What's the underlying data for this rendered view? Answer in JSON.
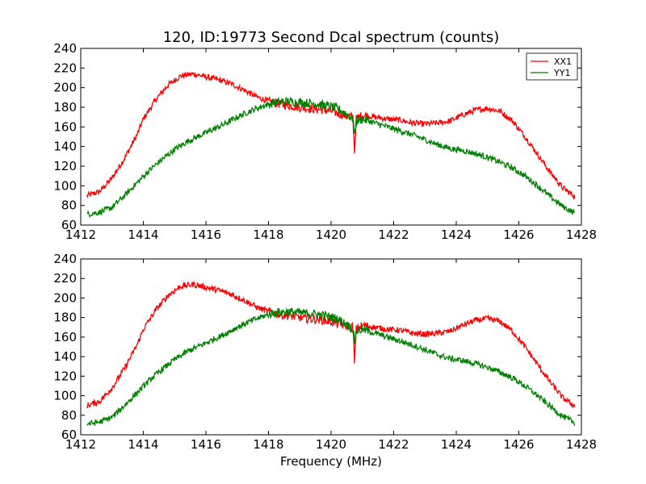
{
  "chart_data": {
    "type": "line",
    "title": "120, ID:19773 Second Dcal spectrum (counts)",
    "xlabel": "Frequency (MHz)",
    "ylabel": "",
    "grid": false,
    "legend_placement": "top-right",
    "panels": [
      {
        "name": "top",
        "xlim": [
          1412,
          1428
        ],
        "ylim": [
          60,
          240
        ],
        "xticks": [
          1412,
          1414,
          1416,
          1418,
          1420,
          1422,
          1424,
          1426,
          1428
        ],
        "yticks": [
          60,
          80,
          100,
          120,
          140,
          160,
          180,
          200,
          220,
          240
        ],
        "show_legend": true,
        "show_xlabel": false,
        "show_title": true,
        "series": [
          {
            "name": "XX1",
            "color": "#ff0000",
            "x": [
              1412.2,
              1412.6,
              1413.0,
              1413.4,
              1413.8,
              1414.0,
              1414.4,
              1414.8,
              1415.2,
              1415.6,
              1416.0,
              1416.4,
              1416.8,
              1417.2,
              1417.6,
              1418.0,
              1418.4,
              1418.8,
              1419.2,
              1419.6,
              1420.0,
              1420.4,
              1420.7,
              1420.75,
              1420.8,
              1421.0,
              1421.4,
              1421.8,
              1422.2,
              1422.6,
              1423.0,
              1423.4,
              1423.8,
              1424.2,
              1424.6,
              1425.0,
              1425.4,
              1425.8,
              1426.2,
              1426.6,
              1427.0,
              1427.4,
              1427.8
            ],
            "y": [
              90,
              94,
              108,
              128,
              152,
              168,
              188,
              203,
              212,
              214,
              211,
              208,
              204,
              198,
              191,
              186,
              183,
              181,
              179,
              178,
              176,
              172,
              170,
              133,
              168,
              172,
              170,
              168,
              167,
              164,
              163,
              164,
              166,
              172,
              177,
              179,
              176,
              166,
              150,
              132,
              114,
              98,
              89
            ]
          },
          {
            "name": "YY1",
            "color": "#008000",
            "x": [
              1412.2,
              1412.6,
              1413.0,
              1413.4,
              1413.8,
              1414.2,
              1414.6,
              1415.0,
              1415.4,
              1415.8,
              1416.2,
              1416.6,
              1417.0,
              1417.4,
              1417.8,
              1418.2,
              1418.6,
              1419.0,
              1419.4,
              1419.8,
              1420.2,
              1420.5,
              1420.7,
              1420.75,
              1420.8,
              1421.0,
              1421.4,
              1421.8,
              1422.2,
              1422.6,
              1423.0,
              1423.4,
              1423.8,
              1424.2,
              1424.6,
              1425.0,
              1425.4,
              1425.8,
              1426.2,
              1426.6,
              1427.0,
              1427.4,
              1427.8
            ],
            "y": [
              71,
              73,
              78,
              90,
              103,
              116,
              127,
              137,
              145,
              151,
              157,
              163,
              170,
              176,
              181,
              185,
              186,
              185,
              184,
              182,
              179,
              173,
              168,
              153,
              166,
              168,
              164,
              160,
              156,
              152,
              147,
              142,
              138,
              136,
              133,
              129,
              124,
              118,
              110,
              100,
              89,
              79,
              72
            ]
          }
        ]
      },
      {
        "name": "bottom",
        "xlim": [
          1412,
          1428
        ],
        "ylim": [
          60,
          240
        ],
        "xticks": [
          1412,
          1414,
          1416,
          1418,
          1420,
          1422,
          1424,
          1426,
          1428
        ],
        "yticks": [
          60,
          80,
          100,
          120,
          140,
          160,
          180,
          200,
          220,
          240
        ],
        "show_legend": false,
        "show_xlabel": true,
        "show_title": false,
        "series": [
          {
            "name": "XX1",
            "color": "#ff0000",
            "x": [
              1412.2,
              1412.6,
              1413.0,
              1413.4,
              1413.8,
              1414.0,
              1414.4,
              1414.8,
              1415.2,
              1415.6,
              1416.0,
              1416.4,
              1416.8,
              1417.2,
              1417.6,
              1418.0,
              1418.4,
              1418.8,
              1419.2,
              1419.6,
              1420.0,
              1420.4,
              1420.7,
              1420.75,
              1420.8,
              1421.0,
              1421.4,
              1421.8,
              1422.2,
              1422.6,
              1423.0,
              1423.4,
              1423.8,
              1424.2,
              1424.6,
              1425.0,
              1425.4,
              1425.8,
              1426.2,
              1426.6,
              1427.0,
              1427.4,
              1427.8
            ],
            "y": [
              90,
              94,
              108,
              128,
              152,
              168,
              188,
              203,
              212,
              214,
              211,
              208,
              204,
              198,
              191,
              186,
              183,
              181,
              179,
              178,
              176,
              172,
              170,
              133,
              168,
              172,
              170,
              168,
              167,
              164,
              163,
              164,
              166,
              172,
              177,
              179,
              176,
              166,
              150,
              132,
              114,
              98,
              89
            ]
          },
          {
            "name": "YY1",
            "color": "#008000",
            "x": [
              1412.2,
              1412.6,
              1413.0,
              1413.4,
              1413.8,
              1414.2,
              1414.6,
              1415.0,
              1415.4,
              1415.8,
              1416.2,
              1416.6,
              1417.0,
              1417.4,
              1417.8,
              1418.2,
              1418.6,
              1419.0,
              1419.4,
              1419.8,
              1420.2,
              1420.5,
              1420.7,
              1420.75,
              1420.8,
              1421.0,
              1421.4,
              1421.8,
              1422.2,
              1422.6,
              1423.0,
              1423.4,
              1423.8,
              1424.2,
              1424.6,
              1425.0,
              1425.4,
              1425.8,
              1426.2,
              1426.6,
              1427.0,
              1427.4,
              1427.8
            ],
            "y": [
              71,
              73,
              78,
              90,
              103,
              116,
              127,
              137,
              145,
              151,
              157,
              163,
              170,
              176,
              181,
              185,
              186,
              185,
              184,
              182,
              179,
              173,
              168,
              153,
              166,
              168,
              164,
              160,
              156,
              152,
              147,
              142,
              138,
              136,
              133,
              129,
              124,
              118,
              110,
              100,
              89,
              79,
              72
            ]
          }
        ]
      }
    ]
  }
}
